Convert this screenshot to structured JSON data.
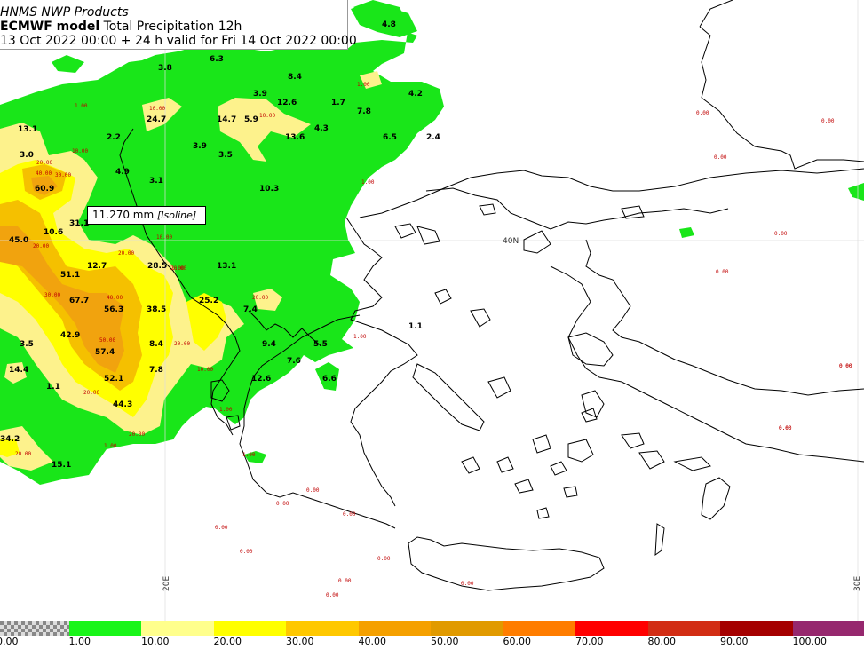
{
  "header": {
    "provider": "HNMS NWP Products",
    "model": "ECMWF model",
    "product": "Total Precipitation 12h",
    "valid": "13 Oct 2022 00:00 + 24 h valid for Fri 14 Oct 2022 00:00"
  },
  "tooltip": {
    "value": "11.270 mm",
    "kind": "[Isoline]"
  },
  "gridlines": {
    "lon_20": "20E",
    "lon_30": "30E",
    "lat_40": "40N"
  },
  "colors": {
    "green": "#19e619",
    "light_yellow": "#fdf28c",
    "yellow": "#ffff00",
    "orange_light": "#f5c000",
    "orange": "#f1a30e",
    "dark_orange": "#e79e0e",
    "coast": "#000000"
  },
  "values_big": [
    {
      "t": "4.8"
    },
    {
      "t": "6.3"
    },
    {
      "t": "3.8"
    },
    {
      "t": "8.4"
    },
    {
      "t": "3.9"
    },
    {
      "t": "12.6"
    },
    {
      "t": "1.7"
    },
    {
      "t": "7.8"
    },
    {
      "t": "4.2"
    },
    {
      "t": "13.1"
    },
    {
      "t": "24.7"
    },
    {
      "t": "14.7"
    },
    {
      "t": "5.9"
    },
    {
      "t": "4.3"
    },
    {
      "t": "2.2"
    },
    {
      "t": "13.6"
    },
    {
      "t": "6.5"
    },
    {
      "t": "2.4"
    },
    {
      "t": "3.0"
    },
    {
      "t": "3.9"
    },
    {
      "t": "3.5"
    },
    {
      "t": "4.9"
    },
    {
      "t": "3.1"
    },
    {
      "t": "60.9"
    },
    {
      "t": "10.3"
    },
    {
      "t": "31.1"
    },
    {
      "t": "10.6"
    },
    {
      "t": "45.0"
    },
    {
      "t": "12.7"
    },
    {
      "t": "28.5"
    },
    {
      "t": "13.1"
    },
    {
      "t": "51.1"
    },
    {
      "t": "67.7"
    },
    {
      "t": "56.3"
    },
    {
      "t": "38.5"
    },
    {
      "t": "25.2"
    },
    {
      "t": "7.4"
    },
    {
      "t": "3.5"
    },
    {
      "t": "42.9"
    },
    {
      "t": "8.4"
    },
    {
      "t": "9.4"
    },
    {
      "t": "5.5"
    },
    {
      "t": "1.1"
    },
    {
      "t": "57.4"
    },
    {
      "t": "14.4"
    },
    {
      "t": "7.8"
    },
    {
      "t": "7.6"
    },
    {
      "t": "52.1"
    },
    {
      "t": "12.6"
    },
    {
      "t": "6.6"
    },
    {
      "t": "1.1"
    },
    {
      "t": "44.3"
    },
    {
      "t": "34.2"
    },
    {
      "t": "15.1"
    }
  ],
  "values_small": [
    {
      "t": "1.00"
    },
    {
      "t": "1.00"
    },
    {
      "t": "10.00"
    },
    {
      "t": "10.00"
    },
    {
      "t": "10.00"
    },
    {
      "t": "20.00"
    },
    {
      "t": "40.00"
    },
    {
      "t": "30.00"
    },
    {
      "t": "20.00"
    },
    {
      "t": "20.00"
    },
    {
      "t": "20.00"
    },
    {
      "t": "30.00"
    },
    {
      "t": "40.00"
    },
    {
      "t": "20.00"
    },
    {
      "t": "50.00"
    },
    {
      "t": "20.00"
    },
    {
      "t": "10.00"
    },
    {
      "t": "20.00"
    },
    {
      "t": "20.00"
    },
    {
      "t": "20.00"
    },
    {
      "t": "1.00"
    },
    {
      "t": "1.00"
    },
    {
      "t": "1.00"
    },
    {
      "t": "1.00"
    },
    {
      "t": "1.00"
    },
    {
      "t": "10.00"
    },
    {
      "t": "1.00"
    },
    {
      "t": "0.00"
    },
    {
      "t": "0.00"
    },
    {
      "t": "0.00"
    },
    {
      "t": "0.00"
    },
    {
      "t": "0.00"
    },
    {
      "t": "0.00"
    },
    {
      "t": "0.00"
    },
    {
      "t": "0.00"
    },
    {
      "t": "0.00"
    },
    {
      "t": "0.00"
    },
    {
      "t": "0.00"
    },
    {
      "t": "0.00"
    },
    {
      "t": "0.00"
    },
    {
      "t": "0.00"
    },
    {
      "t": "0.00"
    },
    {
      "t": "0.00"
    },
    {
      "t": "0.00"
    },
    {
      "t": "0.00"
    }
  ],
  "legend": [
    {
      "label": "0.00",
      "color": "checker"
    },
    {
      "label": "1.00",
      "color": "#19f519"
    },
    {
      "label": "10.00",
      "color": "#ffff8c"
    },
    {
      "label": "20.00",
      "color": "#ffff00"
    },
    {
      "label": "30.00",
      "color": "#ffc800"
    },
    {
      "label": "40.00",
      "color": "#f5a000"
    },
    {
      "label": "50.00",
      "color": "#e19a00"
    },
    {
      "label": "60.00",
      "color": "#ff7d00"
    },
    {
      "label": "70.00",
      "color": "#ff0000"
    },
    {
      "label": "80.00",
      "color": "#d22d14"
    },
    {
      "label": "90.00",
      "color": "#a50000"
    },
    {
      "label": "100.00",
      "color": "#96286e"
    }
  ]
}
